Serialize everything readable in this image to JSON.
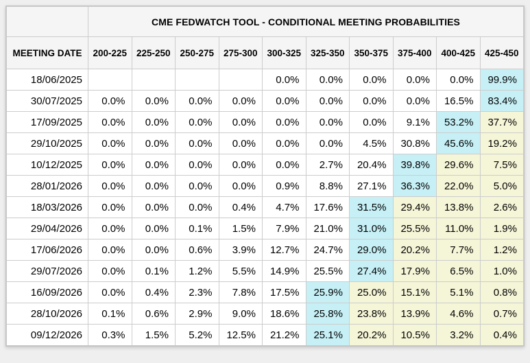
{
  "colors": {
    "page_background": "#efefef",
    "table_background": "#ffffff",
    "header_background": "#f5f5f5",
    "border": "#cccccc",
    "highlight_cyan": "#c6f0f6",
    "highlight_cream": "#f5f5d8",
    "text": "#000000"
  },
  "chart_data": {
    "type": "table",
    "title": "CME FEDWATCH TOOL - CONDITIONAL MEETING PROBABILITIES",
    "date_column_header": "MEETING DATE",
    "rate_bins": [
      "200-225",
      "225-250",
      "250-275",
      "275-300",
      "300-325",
      "325-350",
      "350-375",
      "375-400",
      "400-425",
      "425-450"
    ],
    "rows": [
      {
        "date": "18/06/2025",
        "values": [
          "",
          "",
          "",
          "",
          "0.0%",
          "0.0%",
          "0.0%",
          "0.0%",
          "0.0%",
          "99.9%"
        ],
        "highlights": [
          "w",
          "w",
          "w",
          "w",
          "w",
          "w",
          "w",
          "w",
          "w",
          "c"
        ]
      },
      {
        "date": "30/07/2025",
        "values": [
          "0.0%",
          "0.0%",
          "0.0%",
          "0.0%",
          "0.0%",
          "0.0%",
          "0.0%",
          "0.0%",
          "16.5%",
          "83.4%"
        ],
        "highlights": [
          "w",
          "w",
          "w",
          "w",
          "w",
          "w",
          "w",
          "w",
          "w",
          "c"
        ]
      },
      {
        "date": "17/09/2025",
        "values": [
          "0.0%",
          "0.0%",
          "0.0%",
          "0.0%",
          "0.0%",
          "0.0%",
          "0.0%",
          "9.1%",
          "53.2%",
          "37.7%"
        ],
        "highlights": [
          "w",
          "w",
          "w",
          "w",
          "w",
          "w",
          "w",
          "w",
          "c",
          "y"
        ]
      },
      {
        "date": "29/10/2025",
        "values": [
          "0.0%",
          "0.0%",
          "0.0%",
          "0.0%",
          "0.0%",
          "0.0%",
          "4.5%",
          "30.8%",
          "45.6%",
          "19.2%"
        ],
        "highlights": [
          "w",
          "w",
          "w",
          "w",
          "w",
          "w",
          "w",
          "w",
          "c",
          "y"
        ]
      },
      {
        "date": "10/12/2025",
        "values": [
          "0.0%",
          "0.0%",
          "0.0%",
          "0.0%",
          "0.0%",
          "2.7%",
          "20.4%",
          "39.8%",
          "29.6%",
          "7.5%"
        ],
        "highlights": [
          "w",
          "w",
          "w",
          "w",
          "w",
          "w",
          "w",
          "c",
          "y",
          "y"
        ]
      },
      {
        "date": "28/01/2026",
        "values": [
          "0.0%",
          "0.0%",
          "0.0%",
          "0.0%",
          "0.9%",
          "8.8%",
          "27.1%",
          "36.3%",
          "22.0%",
          "5.0%"
        ],
        "highlights": [
          "w",
          "w",
          "w",
          "w",
          "w",
          "w",
          "w",
          "c",
          "y",
          "y"
        ]
      },
      {
        "date": "18/03/2026",
        "values": [
          "0.0%",
          "0.0%",
          "0.0%",
          "0.4%",
          "4.7%",
          "17.6%",
          "31.5%",
          "29.4%",
          "13.8%",
          "2.6%"
        ],
        "highlights": [
          "w",
          "w",
          "w",
          "w",
          "w",
          "w",
          "c",
          "y",
          "y",
          "y"
        ]
      },
      {
        "date": "29/04/2026",
        "values": [
          "0.0%",
          "0.0%",
          "0.1%",
          "1.5%",
          "7.9%",
          "21.0%",
          "31.0%",
          "25.5%",
          "11.0%",
          "1.9%"
        ],
        "highlights": [
          "w",
          "w",
          "w",
          "w",
          "w",
          "w",
          "c",
          "y",
          "y",
          "y"
        ]
      },
      {
        "date": "17/06/2026",
        "values": [
          "0.0%",
          "0.0%",
          "0.6%",
          "3.9%",
          "12.7%",
          "24.7%",
          "29.0%",
          "20.2%",
          "7.7%",
          "1.2%"
        ],
        "highlights": [
          "w",
          "w",
          "w",
          "w",
          "w",
          "w",
          "c",
          "y",
          "y",
          "y"
        ]
      },
      {
        "date": "29/07/2026",
        "values": [
          "0.0%",
          "0.1%",
          "1.2%",
          "5.5%",
          "14.9%",
          "25.5%",
          "27.4%",
          "17.9%",
          "6.5%",
          "1.0%"
        ],
        "highlights": [
          "w",
          "w",
          "w",
          "w",
          "w",
          "w",
          "c",
          "y",
          "y",
          "y"
        ]
      },
      {
        "date": "16/09/2026",
        "values": [
          "0.0%",
          "0.4%",
          "2.3%",
          "7.8%",
          "17.5%",
          "25.9%",
          "25.0%",
          "15.1%",
          "5.1%",
          "0.8%"
        ],
        "highlights": [
          "w",
          "w",
          "w",
          "w",
          "w",
          "c",
          "y",
          "y",
          "y",
          "y"
        ]
      },
      {
        "date": "28/10/2026",
        "values": [
          "0.1%",
          "0.6%",
          "2.9%",
          "9.0%",
          "18.6%",
          "25.8%",
          "23.8%",
          "13.9%",
          "4.6%",
          "0.7%"
        ],
        "highlights": [
          "w",
          "w",
          "w",
          "w",
          "w",
          "c",
          "y",
          "y",
          "y",
          "y"
        ]
      },
      {
        "date": "09/12/2026",
        "values": [
          "0.3%",
          "1.5%",
          "5.2%",
          "12.5%",
          "21.2%",
          "25.1%",
          "20.2%",
          "10.5%",
          "3.2%",
          "0.4%"
        ],
        "highlights": [
          "w",
          "w",
          "w",
          "w",
          "w",
          "c",
          "y",
          "y",
          "y",
          "y"
        ]
      }
    ]
  }
}
